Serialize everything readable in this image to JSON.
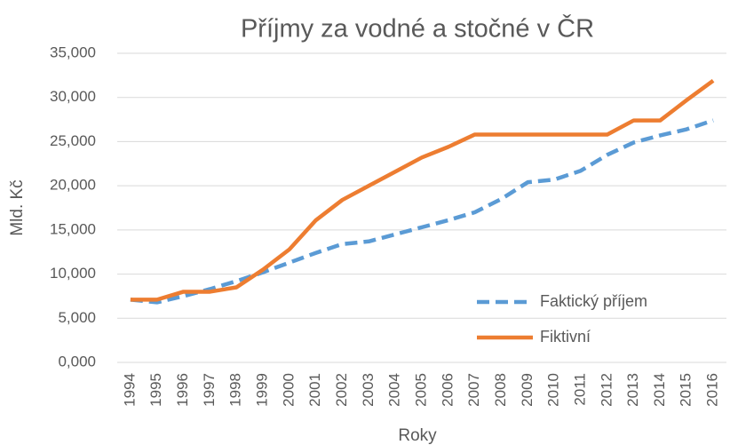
{
  "chart_data": {
    "type": "line",
    "title": "Příjmy za vodné a stočné v ČR",
    "xlabel": "Roky",
    "ylabel": "Mld. Kč",
    "categories": [
      "1994",
      "1995",
      "1996",
      "1997",
      "1998",
      "1999",
      "2000",
      "2001",
      "2002",
      "2003",
      "2004",
      "2005",
      "2006",
      "2007",
      "2008",
      "2009",
      "2010",
      "2011",
      "2012",
      "2013",
      "2014",
      "2015",
      "2016"
    ],
    "series": [
      {
        "name": "Faktický příjem",
        "color": "#5b9bd5",
        "dashed": true,
        "values": [
          7.1,
          6.8,
          7.5,
          8.3,
          9.2,
          10.2,
          11.3,
          12.4,
          13.4,
          13.7,
          14.5,
          15.3,
          16.1,
          17.0,
          18.5,
          20.4,
          20.7,
          21.7,
          23.5,
          24.9,
          25.7,
          26.4,
          27.4
        ]
      },
      {
        "name": "Fiktivní",
        "color": "#ed7d31",
        "dashed": false,
        "values": [
          7.1,
          7.1,
          8.0,
          8.0,
          8.5,
          10.5,
          12.8,
          16.1,
          18.4,
          20.0,
          21.6,
          23.2,
          24.4,
          25.8,
          25.8,
          25.8,
          25.8,
          25.8,
          25.8,
          27.4,
          27.4,
          29.7,
          31.9
        ]
      }
    ],
    "ylim": [
      0,
      35
    ],
    "yticks": [
      {
        "value": 0,
        "label": "0,000"
      },
      {
        "value": 5,
        "label": "5,000"
      },
      {
        "value": 10,
        "label": "10,000"
      },
      {
        "value": 15,
        "label": "15,000"
      },
      {
        "value": 20,
        "label": "20,000"
      },
      {
        "value": 25,
        "label": "25,000"
      },
      {
        "value": 30,
        "label": "30,000"
      },
      {
        "value": 35,
        "label": "35,000"
      }
    ],
    "grid": true,
    "legend": "lower right"
  }
}
